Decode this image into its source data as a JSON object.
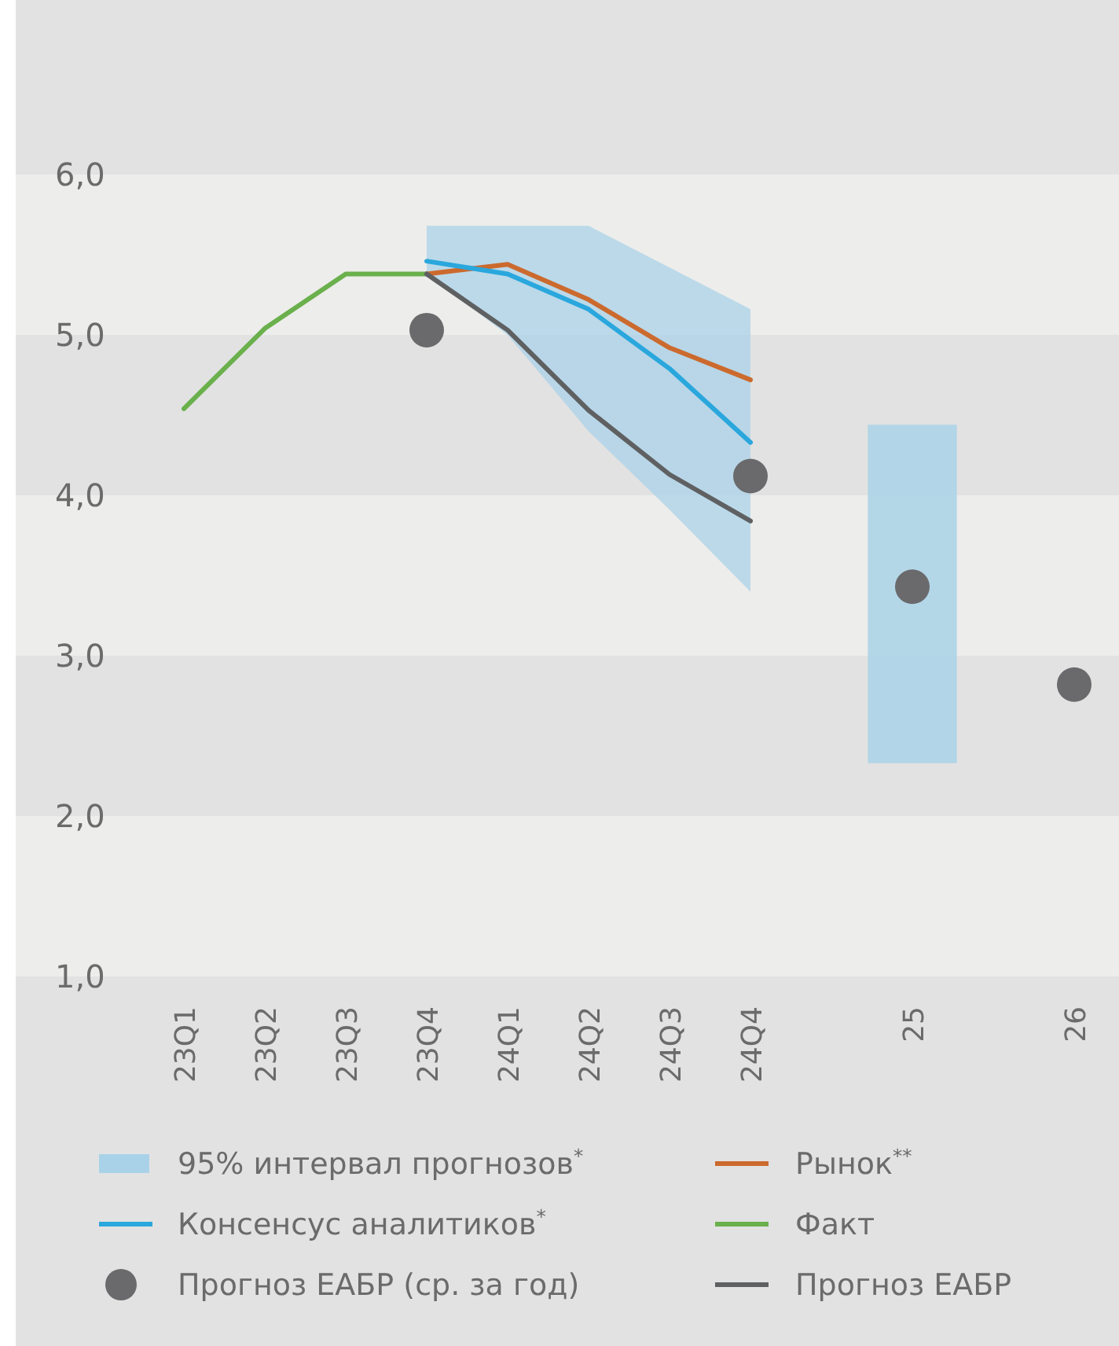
{
  "chart_data": {
    "type": "line",
    "categories": [
      "23Q1",
      "23Q2",
      "23Q3",
      "23Q4",
      "24Q1",
      "24Q2",
      "24Q3",
      "24Q4",
      null,
      "25",
      null,
      "26"
    ],
    "series": [
      {
        "name": "95% интервал прогнозов$^{*}$",
        "type": "area",
        "color": "#a9d2e8",
        "values": [
          null,
          null,
          null,
          null,
          null,
          null,
          null,
          null,
          null,
          null,
          null,
          null
        ],
        "lower": [
          null,
          null,
          null,
          5.38,
          5.0,
          4.4,
          3.91,
          3.4,
          null,
          null,
          null,
          null
        ],
        "upper": [
          null,
          null,
          null,
          5.68,
          5.68,
          5.68,
          5.42,
          5.16,
          null,
          null,
          null,
          null
        ]
      },
      {
        "type": "bar",
        "color": "#a9d2e8",
        "base": [
          null,
          null,
          null,
          null,
          null,
          null,
          null,
          null,
          null,
          2.33,
          null,
          null
        ],
        "values": [
          null,
          null,
          null,
          null,
          null,
          null,
          null,
          null,
          null,
          2.11,
          null,
          null
        ]
      },
      {
        "name": "Рынок$^{**}$",
        "color": "#cc6a2e",
        "values": [
          null,
          null,
          null,
          5.38,
          5.44,
          5.22,
          4.92,
          4.72,
          null,
          null,
          null,
          null
        ]
      },
      {
        "name": "Консенсус аналитиков$^{*}$",
        "color": "#2aa7dd",
        "values": [
          null,
          null,
          null,
          5.46,
          5.38,
          5.16,
          4.79,
          4.33,
          null,
          null,
          null,
          null
        ]
      },
      {
        "name": "Факт",
        "color": "#6ab04c",
        "values": [
          4.54,
          5.04,
          5.38,
          5.38,
          null,
          null,
          null,
          null,
          null,
          null,
          null,
          null
        ]
      },
      {
        "name": "Прогноз ЕАБР (ср. за год)",
        "type": "scatter",
        "marker": "circle",
        "color": "#6a6a6c",
        "values": [
          null,
          null,
          null,
          5.03,
          null,
          null,
          null,
          4.12,
          null,
          3.43,
          null,
          2.82
        ]
      },
      {
        "name": "Прогноз ЕАБР",
        "color": "#5f6062",
        "values": [
          null,
          null,
          null,
          5.38,
          5.03,
          4.53,
          4.13,
          3.84,
          null,
          null,
          null,
          null
        ]
      }
    ],
    "ylim": [
      1,
      6
    ],
    "yticks": [
      {
        "value": 1,
        "label": "1,0"
      },
      {
        "value": 2,
        "label": "2,0"
      },
      {
        "value": 3,
        "label": "3,0"
      },
      {
        "value": 4,
        "label": "4,0"
      },
      {
        "value": 5,
        "label": "5,0"
      },
      {
        "value": 6,
        "label": "6,0"
      }
    ],
    "legend": "bottom",
    "line_style": "solid"
  }
}
